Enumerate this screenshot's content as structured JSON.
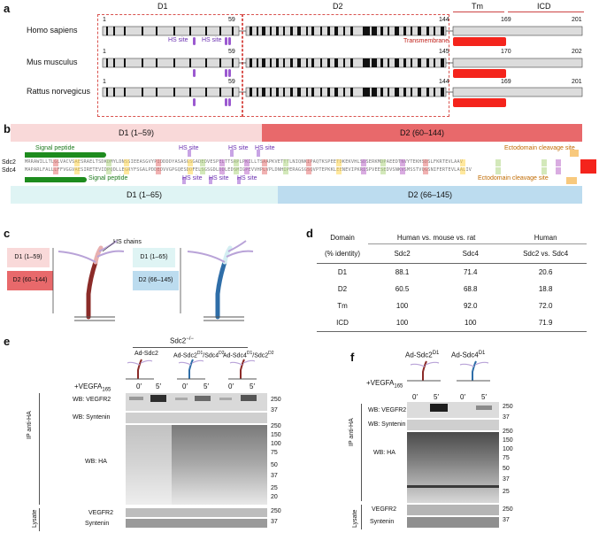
{
  "panels": {
    "a": "a",
    "b": "b",
    "c": "c",
    "d": "d",
    "e": "e",
    "f": "f"
  },
  "panel_a": {
    "regions": [
      "D1",
      "D2",
      "Tm",
      "ICD"
    ],
    "species": [
      {
        "name": "Homo sapiens",
        "n_start": "1",
        "n_d1": "59",
        "n_d2": "144",
        "n_tm": "169",
        "n_end": "201"
      },
      {
        "name": "Mus musculus",
        "n_start": "1",
        "n_d1": "59",
        "n_d2": "145",
        "n_tm": "170",
        "n_end": "202"
      },
      {
        "name": "Rattus norvegicus",
        "n_start": "1",
        "n_d1": "59",
        "n_d2": "144",
        "n_tm": "169",
        "n_end": "201"
      }
    ],
    "hs_site": "HS site",
    "transmembrane": "Transmembrane"
  },
  "panel_b": {
    "top_d1": "D1 (1–59)",
    "top_d2": "D2 (60–144)",
    "bottom_d1": "D1 (1–65)",
    "bottom_d2": "D2 (66–145)",
    "signal_peptide": "Signal peptide",
    "hs_site": "HS site",
    "ectodomain_cleavage": "Ectodomain cleavage site",
    "row1_label": "Sdc2",
    "row2_label": "Sdc4",
    "seq1": "MRRAWILLTLGLVACVSAESRAELTSDKDMYLDNSSIEEASGVYPIDDDDYASASGSGADEDVESPELTTSRPLPKILLTSAAPKVETTTLNIQNKIPAQTKSPEETDKEKVHLSDSERKMDPAEEDTNVYTEKHSDSLFKRTEVLAAV",
    "seq2": "MAPARLFALLLFFVGGVAESIRETEVIDPQDLLEGRYFSGALPDDEDVVGPGQESDDFELSGSGDLDDLEDSMIGPEVVHPLVPLDNHIPERAGSGSQVPTEPKKLEENEVIPKRISPVEESEDVSNKVSMSSTVQGSNIFERTEVLAALIV"
  },
  "panel_c": {
    "hs_chains": "HS chains",
    "left_d1": "D1 (1–59)",
    "left_d2": "D2 (60–144)",
    "right_d1": "D1 (1–65)",
    "right_d2": "D2 (66–145)"
  },
  "panel_d": {
    "header_domain": "Domain",
    "header_identity": "(% identity)",
    "header_group1": "Human vs. mouse vs. rat",
    "header_group2": "Human",
    "sub_col1": "Sdc2",
    "sub_col2": "Sdc4",
    "sub_col3": "Sdc2 vs. Sdc4",
    "rows": [
      {
        "domain": "D1",
        "sdc2": "88.1",
        "sdc4": "71.4",
        "vs": "20.6"
      },
      {
        "domain": "D2",
        "sdc2": "60.5",
        "sdc4": "68.8",
        "vs": "18.8"
      },
      {
        "domain": "Tm",
        "sdc2": "100",
        "sdc4": "92.0",
        "vs": "72.0"
      },
      {
        "domain": "ICD",
        "sdc2": "100",
        "sdc4": "100",
        "vs": "71.9"
      }
    ]
  },
  "panel_e": {
    "genotype": "Sdc2",
    "genotype_sup": "−/−",
    "constructs": [
      "Ad-Sdc2",
      "Ad-Sdc2",
      "Ad-Sdc4"
    ],
    "construct2_sup1": "D1",
    "construct2_mid": "/Sdc4",
    "construct2_sup2": "D2",
    "construct3_sup1": "D1",
    "construct3_mid": "/Sdc2",
    "construct3_sup2": "D2",
    "treatment": "+VEGFA",
    "treatment_sub": "165",
    "times": [
      "0′",
      "5′",
      "0′",
      "5′",
      "0′",
      "5′"
    ],
    "ip_label": "IP anti-HA",
    "lysate_label": "Lysate",
    "blots": {
      "vegfr2": "WB: VEGFR2",
      "syntenin": "WB: Syntenin",
      "ha": "WB: HA",
      "lys_vegfr2": "VEGFR2",
      "lys_syntenin": "Syntenin"
    },
    "markers_top": [
      "250",
      "37"
    ],
    "markers_ha": [
      "250",
      "150",
      "100",
      "75",
      "50",
      "37",
      "25",
      "20"
    ],
    "markers_lys": [
      "250",
      "37"
    ]
  },
  "panel_f": {
    "construct1": "Ad-Sdc2",
    "construct1_sup": "D1",
    "construct2": "Ad-Sdc4",
    "construct2_sup": "D1",
    "treatment": "+VEGFA",
    "treatment_sub": "165",
    "times": [
      "0′",
      "5′",
      "0′",
      "5′"
    ],
    "ip_label": "IP anti-HA",
    "lysate_label": "Lysate",
    "blots": {
      "vegfr2": "WB: VEGFR2",
      "syntenin": "WB: Syntenin",
      "ha": "WB: HA",
      "lys_vegfr2": "VEGFR2",
      "lys_syntenin": "Syntenin"
    },
    "markers_top": [
      "250",
      "37"
    ],
    "markers_ha": [
      "250",
      "150",
      "100",
      "75",
      "50",
      "37",
      "25"
    ],
    "markers_lys": [
      "250",
      "37"
    ]
  },
  "colors": {
    "d1_pink": "#f9d9d9",
    "d2_red": "#e8696b",
    "d1_cyan": "#dff4f4",
    "d2_blue": "#bcdcef",
    "tm_red": "#f4241c",
    "hs_purple": "#9b59d0",
    "signal_green": "#1e8c1e",
    "box_red": "#d9534f"
  }
}
